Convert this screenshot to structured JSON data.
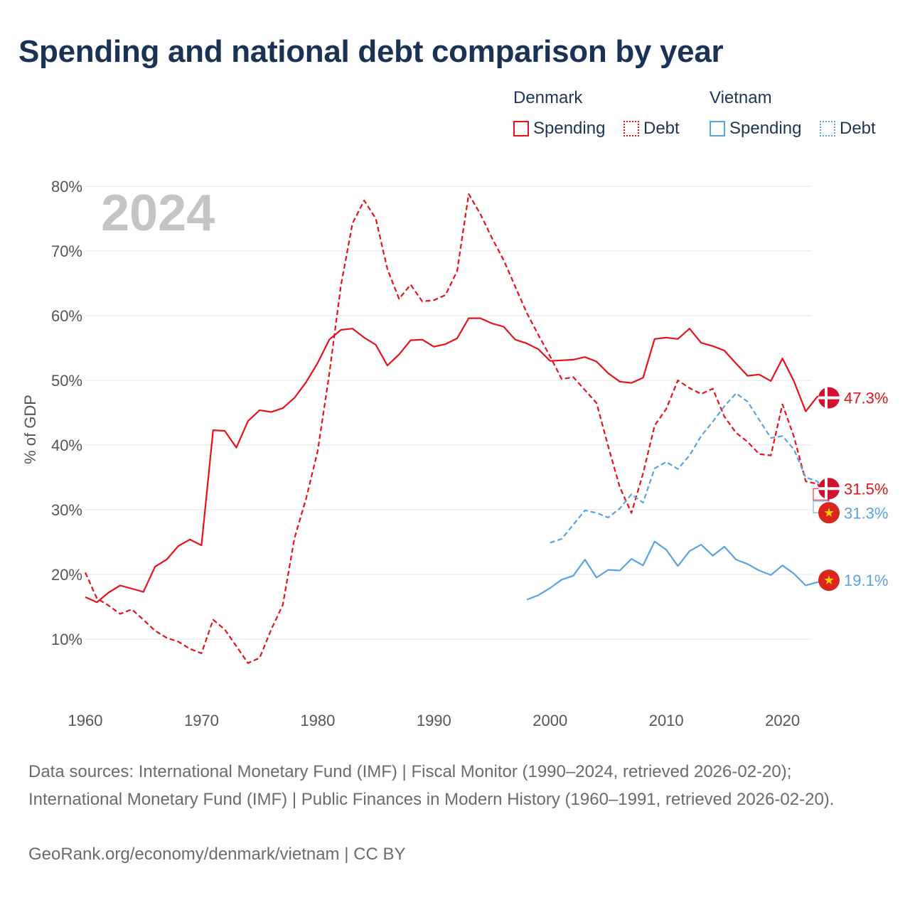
{
  "title": "Spending and national debt comparison by year",
  "legend": {
    "groups": [
      {
        "name": "Denmark",
        "items": [
          {
            "label": "Spending",
            "style": "solid",
            "color": "#e8111a"
          },
          {
            "label": "Debt",
            "style": "dashed",
            "color": "#e8111a"
          }
        ]
      },
      {
        "name": "Vietnam",
        "items": [
          {
            "label": "Spending",
            "style": "solid",
            "color": "#5aa2e0"
          },
          {
            "label": "Debt",
            "style": "dashed",
            "color": "#5aa2e0"
          }
        ]
      }
    ]
  },
  "chart_data": {
    "type": "line",
    "title": "Spending and national debt comparison by year",
    "xlabel": "",
    "ylabel": "% of GDP",
    "year_watermark": "2024",
    "xlim": [
      1960,
      2024
    ],
    "ylim": [
      0,
      80
    ],
    "x_ticks": [
      1960,
      1970,
      1980,
      1990,
      2000,
      2010,
      2020
    ],
    "y_ticks": [
      10,
      20,
      30,
      40,
      50,
      60,
      70,
      80
    ],
    "y_tick_labels": [
      "10%",
      "20%",
      "30%",
      "40%",
      "50%",
      "60%",
      "70%",
      "80%"
    ],
    "grid": true,
    "series": [
      {
        "name": "Denmark Spending",
        "country": "Denmark",
        "color": "#e8111a",
        "dash": false,
        "end_label": "47.3%",
        "points": [
          [
            1960,
            16.5
          ],
          [
            1961,
            15.7
          ],
          [
            1962,
            17.2
          ],
          [
            1963,
            18.3
          ],
          [
            1964,
            17.8
          ],
          [
            1965,
            17.3
          ],
          [
            1966,
            21.2
          ],
          [
            1967,
            22.3
          ],
          [
            1968,
            24.4
          ],
          [
            1969,
            25.4
          ],
          [
            1970,
            24.5
          ],
          [
            1971,
            42.3
          ],
          [
            1972,
            42.2
          ],
          [
            1973,
            39.6
          ],
          [
            1974,
            43.7
          ],
          [
            1975,
            45.4
          ],
          [
            1976,
            45.1
          ],
          [
            1977,
            45.7
          ],
          [
            1978,
            47.3
          ],
          [
            1979,
            49.7
          ],
          [
            1980,
            52.7
          ],
          [
            1981,
            56.3
          ],
          [
            1982,
            57.8
          ],
          [
            1983,
            58.0
          ],
          [
            1984,
            56.6
          ],
          [
            1985,
            55.5
          ],
          [
            1986,
            52.3
          ],
          [
            1987,
            54.0
          ],
          [
            1988,
            56.2
          ],
          [
            1989,
            56.3
          ],
          [
            1990,
            55.2
          ],
          [
            1991,
            55.6
          ],
          [
            1992,
            56.5
          ],
          [
            1993,
            59.6
          ],
          [
            1994,
            59.6
          ],
          [
            1995,
            58.8
          ],
          [
            1996,
            58.3
          ],
          [
            1997,
            56.3
          ],
          [
            1998,
            55.7
          ],
          [
            1999,
            54.8
          ],
          [
            2000,
            53.0
          ],
          [
            2001,
            53.1
          ],
          [
            2002,
            53.2
          ],
          [
            2003,
            53.6
          ],
          [
            2004,
            52.9
          ],
          [
            2005,
            51.1
          ],
          [
            2006,
            49.8
          ],
          [
            2007,
            49.6
          ],
          [
            2008,
            50.4
          ],
          [
            2009,
            56.4
          ],
          [
            2010,
            56.6
          ],
          [
            2011,
            56.4
          ],
          [
            2012,
            58.0
          ],
          [
            2013,
            55.8
          ],
          [
            2014,
            55.3
          ],
          [
            2015,
            54.6
          ],
          [
            2016,
            52.6
          ],
          [
            2017,
            50.7
          ],
          [
            2018,
            50.9
          ],
          [
            2019,
            49.9
          ],
          [
            2020,
            53.4
          ],
          [
            2021,
            49.8
          ],
          [
            2022,
            45.2
          ],
          [
            2023,
            47.5
          ],
          [
            2024,
            47.3
          ]
        ]
      },
      {
        "name": "Denmark Debt",
        "country": "Denmark",
        "color": "#e8111a",
        "dash": true,
        "end_label": "31.5%",
        "points": [
          [
            1960,
            20.3
          ],
          [
            1961,
            16.3
          ],
          [
            1962,
            15.2
          ],
          [
            1963,
            13.9
          ],
          [
            1964,
            14.6
          ],
          [
            1965,
            13.0
          ],
          [
            1966,
            11.3
          ],
          [
            1967,
            10.2
          ],
          [
            1968,
            9.6
          ],
          [
            1969,
            8.5
          ],
          [
            1970,
            7.8
          ],
          [
            1971,
            13.0
          ],
          [
            1972,
            11.5
          ],
          [
            1973,
            8.9
          ],
          [
            1974,
            6.3
          ],
          [
            1975,
            7.1
          ],
          [
            1976,
            11.5
          ],
          [
            1977,
            15.3
          ],
          [
            1978,
            25.6
          ],
          [
            1979,
            31.7
          ],
          [
            1980,
            39.1
          ],
          [
            1981,
            51.0
          ],
          [
            1982,
            64.7
          ],
          [
            1983,
            74.3
          ],
          [
            1984,
            77.8
          ],
          [
            1985,
            75.0
          ],
          [
            1986,
            67.2
          ],
          [
            1987,
            62.6
          ],
          [
            1988,
            64.8
          ],
          [
            1989,
            62.2
          ],
          [
            1990,
            62.4
          ],
          [
            1991,
            63.2
          ],
          [
            1992,
            66.9
          ],
          [
            1993,
            78.8
          ],
          [
            1994,
            75.7
          ],
          [
            1995,
            72.0
          ],
          [
            1996,
            68.6
          ],
          [
            1997,
            64.5
          ],
          [
            1998,
            60.4
          ],
          [
            1999,
            57.0
          ],
          [
            2000,
            53.7
          ],
          [
            2001,
            50.2
          ],
          [
            2002,
            50.5
          ],
          [
            2003,
            48.5
          ],
          [
            2004,
            46.5
          ],
          [
            2005,
            39.8
          ],
          [
            2006,
            33.5
          ],
          [
            2007,
            29.5
          ],
          [
            2008,
            35.6
          ],
          [
            2009,
            43.0
          ],
          [
            2010,
            45.6
          ],
          [
            2011,
            50.0
          ],
          [
            2012,
            48.8
          ],
          [
            2013,
            47.9
          ],
          [
            2014,
            48.7
          ],
          [
            2015,
            44.4
          ],
          [
            2016,
            41.9
          ],
          [
            2017,
            40.5
          ],
          [
            2018,
            38.6
          ],
          [
            2019,
            38.4
          ],
          [
            2020,
            46.3
          ],
          [
            2021,
            41.2
          ],
          [
            2022,
            34.4
          ],
          [
            2023,
            34.0
          ],
          [
            2024,
            31.5
          ]
        ]
      },
      {
        "name": "Vietnam Spending",
        "country": "Vietnam",
        "color": "#5aa2e0",
        "dash": false,
        "end_label": "19.1%",
        "points": [
          [
            1998,
            16.1
          ],
          [
            1999,
            16.8
          ],
          [
            2000,
            17.9
          ],
          [
            2001,
            19.2
          ],
          [
            2002,
            19.8
          ],
          [
            2003,
            22.3
          ],
          [
            2004,
            19.5
          ],
          [
            2005,
            20.7
          ],
          [
            2006,
            20.6
          ],
          [
            2007,
            22.4
          ],
          [
            2008,
            21.4
          ],
          [
            2009,
            25.1
          ],
          [
            2010,
            23.8
          ],
          [
            2011,
            21.3
          ],
          [
            2012,
            23.6
          ],
          [
            2013,
            24.6
          ],
          [
            2014,
            22.9
          ],
          [
            2015,
            24.3
          ],
          [
            2016,
            22.3
          ],
          [
            2017,
            21.6
          ],
          [
            2018,
            20.6
          ],
          [
            2019,
            19.9
          ],
          [
            2020,
            21.4
          ],
          [
            2021,
            20.1
          ],
          [
            2022,
            18.3
          ],
          [
            2023,
            18.8
          ],
          [
            2024,
            19.1
          ]
        ]
      },
      {
        "name": "Vietnam Debt",
        "country": "Vietnam",
        "color": "#5aa2e0",
        "dash": true,
        "end_label": "31.3%",
        "points": [
          [
            2000,
            24.9
          ],
          [
            2001,
            25.5
          ],
          [
            2002,
            27.7
          ],
          [
            2003,
            29.9
          ],
          [
            2004,
            29.5
          ],
          [
            2005,
            28.8
          ],
          [
            2006,
            30.2
          ],
          [
            2007,
            32.4
          ],
          [
            2008,
            31.1
          ],
          [
            2009,
            36.4
          ],
          [
            2010,
            37.4
          ],
          [
            2011,
            36.3
          ],
          [
            2012,
            38.4
          ],
          [
            2013,
            41.4
          ],
          [
            2014,
            43.6
          ],
          [
            2015,
            46.0
          ],
          [
            2016,
            48.0
          ],
          [
            2017,
            46.7
          ],
          [
            2018,
            43.9
          ],
          [
            2019,
            41.1
          ],
          [
            2020,
            41.4
          ],
          [
            2021,
            39.3
          ],
          [
            2022,
            35.0
          ],
          [
            2023,
            34.4
          ],
          [
            2024,
            31.3
          ]
        ]
      }
    ]
  },
  "sources_text": "Data sources: International Monetary Fund (IMF) | Fiscal Monitor (1990–2024, retrieved 2026-02-20); International Monetary Fund (IMF) | Public Finances in Modern History (1960–1991, retrieved 2026-02-20).",
  "credit_text": "GeoRank.org/economy/denmark/vietnam | CC BY"
}
